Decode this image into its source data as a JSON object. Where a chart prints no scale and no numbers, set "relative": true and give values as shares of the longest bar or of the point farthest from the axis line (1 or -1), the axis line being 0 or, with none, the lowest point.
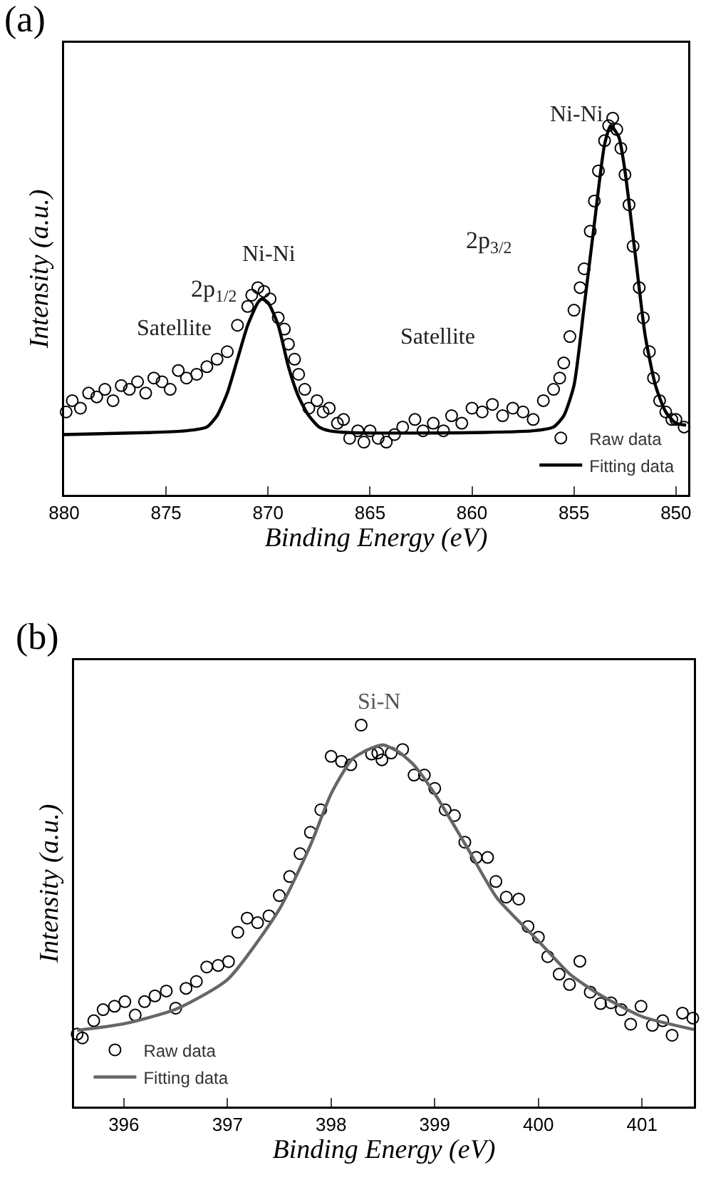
{
  "chart_data": [
    {
      "type": "scatter",
      "relative": true,
      "xlabel": "Binding Energy (eV)",
      "ylabel": "Intensity (a.u.)",
      "xlim": [
        880,
        849.4
      ],
      "xticks": [
        880,
        875,
        870,
        865,
        860,
        855,
        850
      ],
      "legend": "bottom right",
      "annotations": [
        "(a)",
        "Ni-Ni",
        "2p$_{3/2}$",
        "Satellite",
        "Ni-Ni",
        "2p$_{1/2}$",
        "Satellite"
      ],
      "series": [
        {
          "name": "Raw data",
          "type": "scatter",
          "marker": "circle",
          "color": "#000000",
          "x": [
            879.9,
            879.6,
            879.2,
            878.8,
            878.4,
            878,
            877.6,
            877.2,
            876.8,
            876.4,
            876,
            875.6,
            875.2,
            874.8,
            874.4,
            874,
            873.5,
            873,
            872.5,
            872,
            871.5,
            871,
            870.8,
            870.5,
            870.2,
            869.9,
            869.5,
            869.2,
            869,
            868.7,
            868.5,
            868.2,
            868,
            867.6,
            867.3,
            867,
            866.6,
            866.3,
            866,
            865.6,
            865.3,
            865,
            864.6,
            864.2,
            863.8,
            863.4,
            862.8,
            862.4,
            861.9,
            861.4,
            861,
            860.5,
            860,
            859.5,
            859,
            858.5,
            858,
            857.5,
            857,
            856.5,
            856,
            855.7,
            855.5,
            855.2,
            855,
            854.7,
            854.5,
            854.2,
            854,
            853.8,
            853.5,
            853.3,
            853.1,
            852.9,
            852.7,
            852.5,
            852.3,
            852.1,
            851.8,
            851.6,
            851.3,
            851.1,
            850.8,
            850.5,
            850.2,
            850,
            849.6
          ],
          "values": [
            0.22,
            0.25,
            0.23,
            0.27,
            0.26,
            0.28,
            0.25,
            0.29,
            0.28,
            0.3,
            0.27,
            0.31,
            0.3,
            0.28,
            0.33,
            0.31,
            0.32,
            0.34,
            0.36,
            0.38,
            0.45,
            0.5,
            0.53,
            0.55,
            0.54,
            0.52,
            0.47,
            0.44,
            0.4,
            0.36,
            0.32,
            0.28,
            0.23,
            0.25,
            0.22,
            0.23,
            0.19,
            0.2,
            0.15,
            0.17,
            0.14,
            0.17,
            0.15,
            0.14,
            0.16,
            0.18,
            0.2,
            0.17,
            0.19,
            0.17,
            0.21,
            0.19,
            0.23,
            0.22,
            0.24,
            0.21,
            0.23,
            0.22,
            0.2,
            0.25,
            0.28,
            0.31,
            0.35,
            0.42,
            0.49,
            0.55,
            0.6,
            0.7,
            0.78,
            0.86,
            0.94,
            0.98,
            1.0,
            0.97,
            0.92,
            0.85,
            0.77,
            0.66,
            0.55,
            0.47,
            0.38,
            0.31,
            0.25,
            0.22,
            0.2,
            0.2,
            0.18
          ]
        },
        {
          "name": "Fitting data",
          "type": "line",
          "marker": "none",
          "color": "#000000",
          "x": [
            880,
            876,
            874,
            873,
            872.5,
            872,
            871.5,
            871,
            870.5,
            870.3,
            870,
            869.5,
            869,
            868.5,
            868,
            867.5,
            867,
            866,
            860,
            857,
            856,
            855.5,
            855,
            854.5,
            854,
            853.5,
            853.2,
            852.8,
            852.5,
            852,
            851.5,
            851,
            850.5,
            850,
            849.5
          ],
          "values": [
            0.16,
            0.165,
            0.17,
            0.18,
            0.21,
            0.27,
            0.36,
            0.45,
            0.51,
            0.52,
            0.51,
            0.45,
            0.34,
            0.26,
            0.21,
            0.18,
            0.17,
            0.165,
            0.165,
            0.17,
            0.18,
            0.21,
            0.29,
            0.5,
            0.72,
            0.93,
            0.98,
            0.95,
            0.86,
            0.64,
            0.42,
            0.29,
            0.22,
            0.19,
            0.185
          ]
        }
      ]
    },
    {
      "type": "scatter",
      "relative": true,
      "xlabel": "Binding Energy (eV)",
      "ylabel": "Intensity (a.u.)",
      "xlim": [
        395.52,
        401.5
      ],
      "xticks": [
        396,
        397,
        398,
        399,
        400,
        401
      ],
      "legend": "bottom left",
      "annotations": [
        "(b)",
        "Si-N"
      ],
      "series": [
        {
          "name": "Raw data",
          "type": "scatter",
          "marker": "circle",
          "color": "#000000",
          "x": [
            395.55,
            395.6,
            395.71,
            395.8,
            395.91,
            396.01,
            396.11,
            396.2,
            396.3,
            396.41,
            396.5,
            396.6,
            396.7,
            396.8,
            396.91,
            397.01,
            397.1,
            397.19,
            397.29,
            397.4,
            397.5,
            397.6,
            397.7,
            397.8,
            397.9,
            398.0,
            398.1,
            398.19,
            398.29,
            398.39,
            398.45,
            398.49,
            398.58,
            398.69,
            398.8,
            398.9,
            399.0,
            399.1,
            399.19,
            399.29,
            399.4,
            399.51,
            399.59,
            399.69,
            399.81,
            399.9,
            400.0,
            400.09,
            400.2,
            400.3,
            400.4,
            400.5,
            400.6,
            400.7,
            400.8,
            400.89,
            400.99,
            401.1,
            401.2,
            401.29,
            401.39,
            401.49
          ],
          "values": [
            0.19,
            0.18,
            0.225,
            0.254,
            0.263,
            0.275,
            0.24,
            0.275,
            0.29,
            0.303,
            0.258,
            0.31,
            0.328,
            0.366,
            0.37,
            0.38,
            0.457,
            0.494,
            0.482,
            0.5,
            0.553,
            0.603,
            0.663,
            0.719,
            0.778,
            0.918,
            0.905,
            0.896,
            1.0,
            0.924,
            0.927,
            0.909,
            0.927,
            0.936,
            0.869,
            0.869,
            0.834,
            0.778,
            0.763,
            0.693,
            0.653,
            0.653,
            0.59,
            0.549,
            0.544,
            0.472,
            0.444,
            0.393,
            0.347,
            0.32,
            0.381,
            0.3,
            0.27,
            0.272,
            0.254,
            0.216,
            0.263,
            0.213,
            0.225,
            0.187,
            0.245,
            0.232
          ]
        },
        {
          "name": "Fitting data",
          "type": "line",
          "marker": "none",
          "color": "#666666",
          "x": [
            395.55,
            396,
            396.5,
            397,
            397.5,
            397.8,
            398,
            398.2,
            398.35,
            398.5,
            398.65,
            398.8,
            399,
            399.3,
            399.6,
            400,
            400.3,
            400.6,
            401,
            401.5
          ],
          "values": [
            0.2,
            0.217,
            0.255,
            0.333,
            0.517,
            0.685,
            0.82,
            0.91,
            0.935,
            0.948,
            0.93,
            0.895,
            0.82,
            0.685,
            0.547,
            0.434,
            0.348,
            0.292,
            0.236,
            0.202
          ]
        }
      ]
    }
  ]
}
